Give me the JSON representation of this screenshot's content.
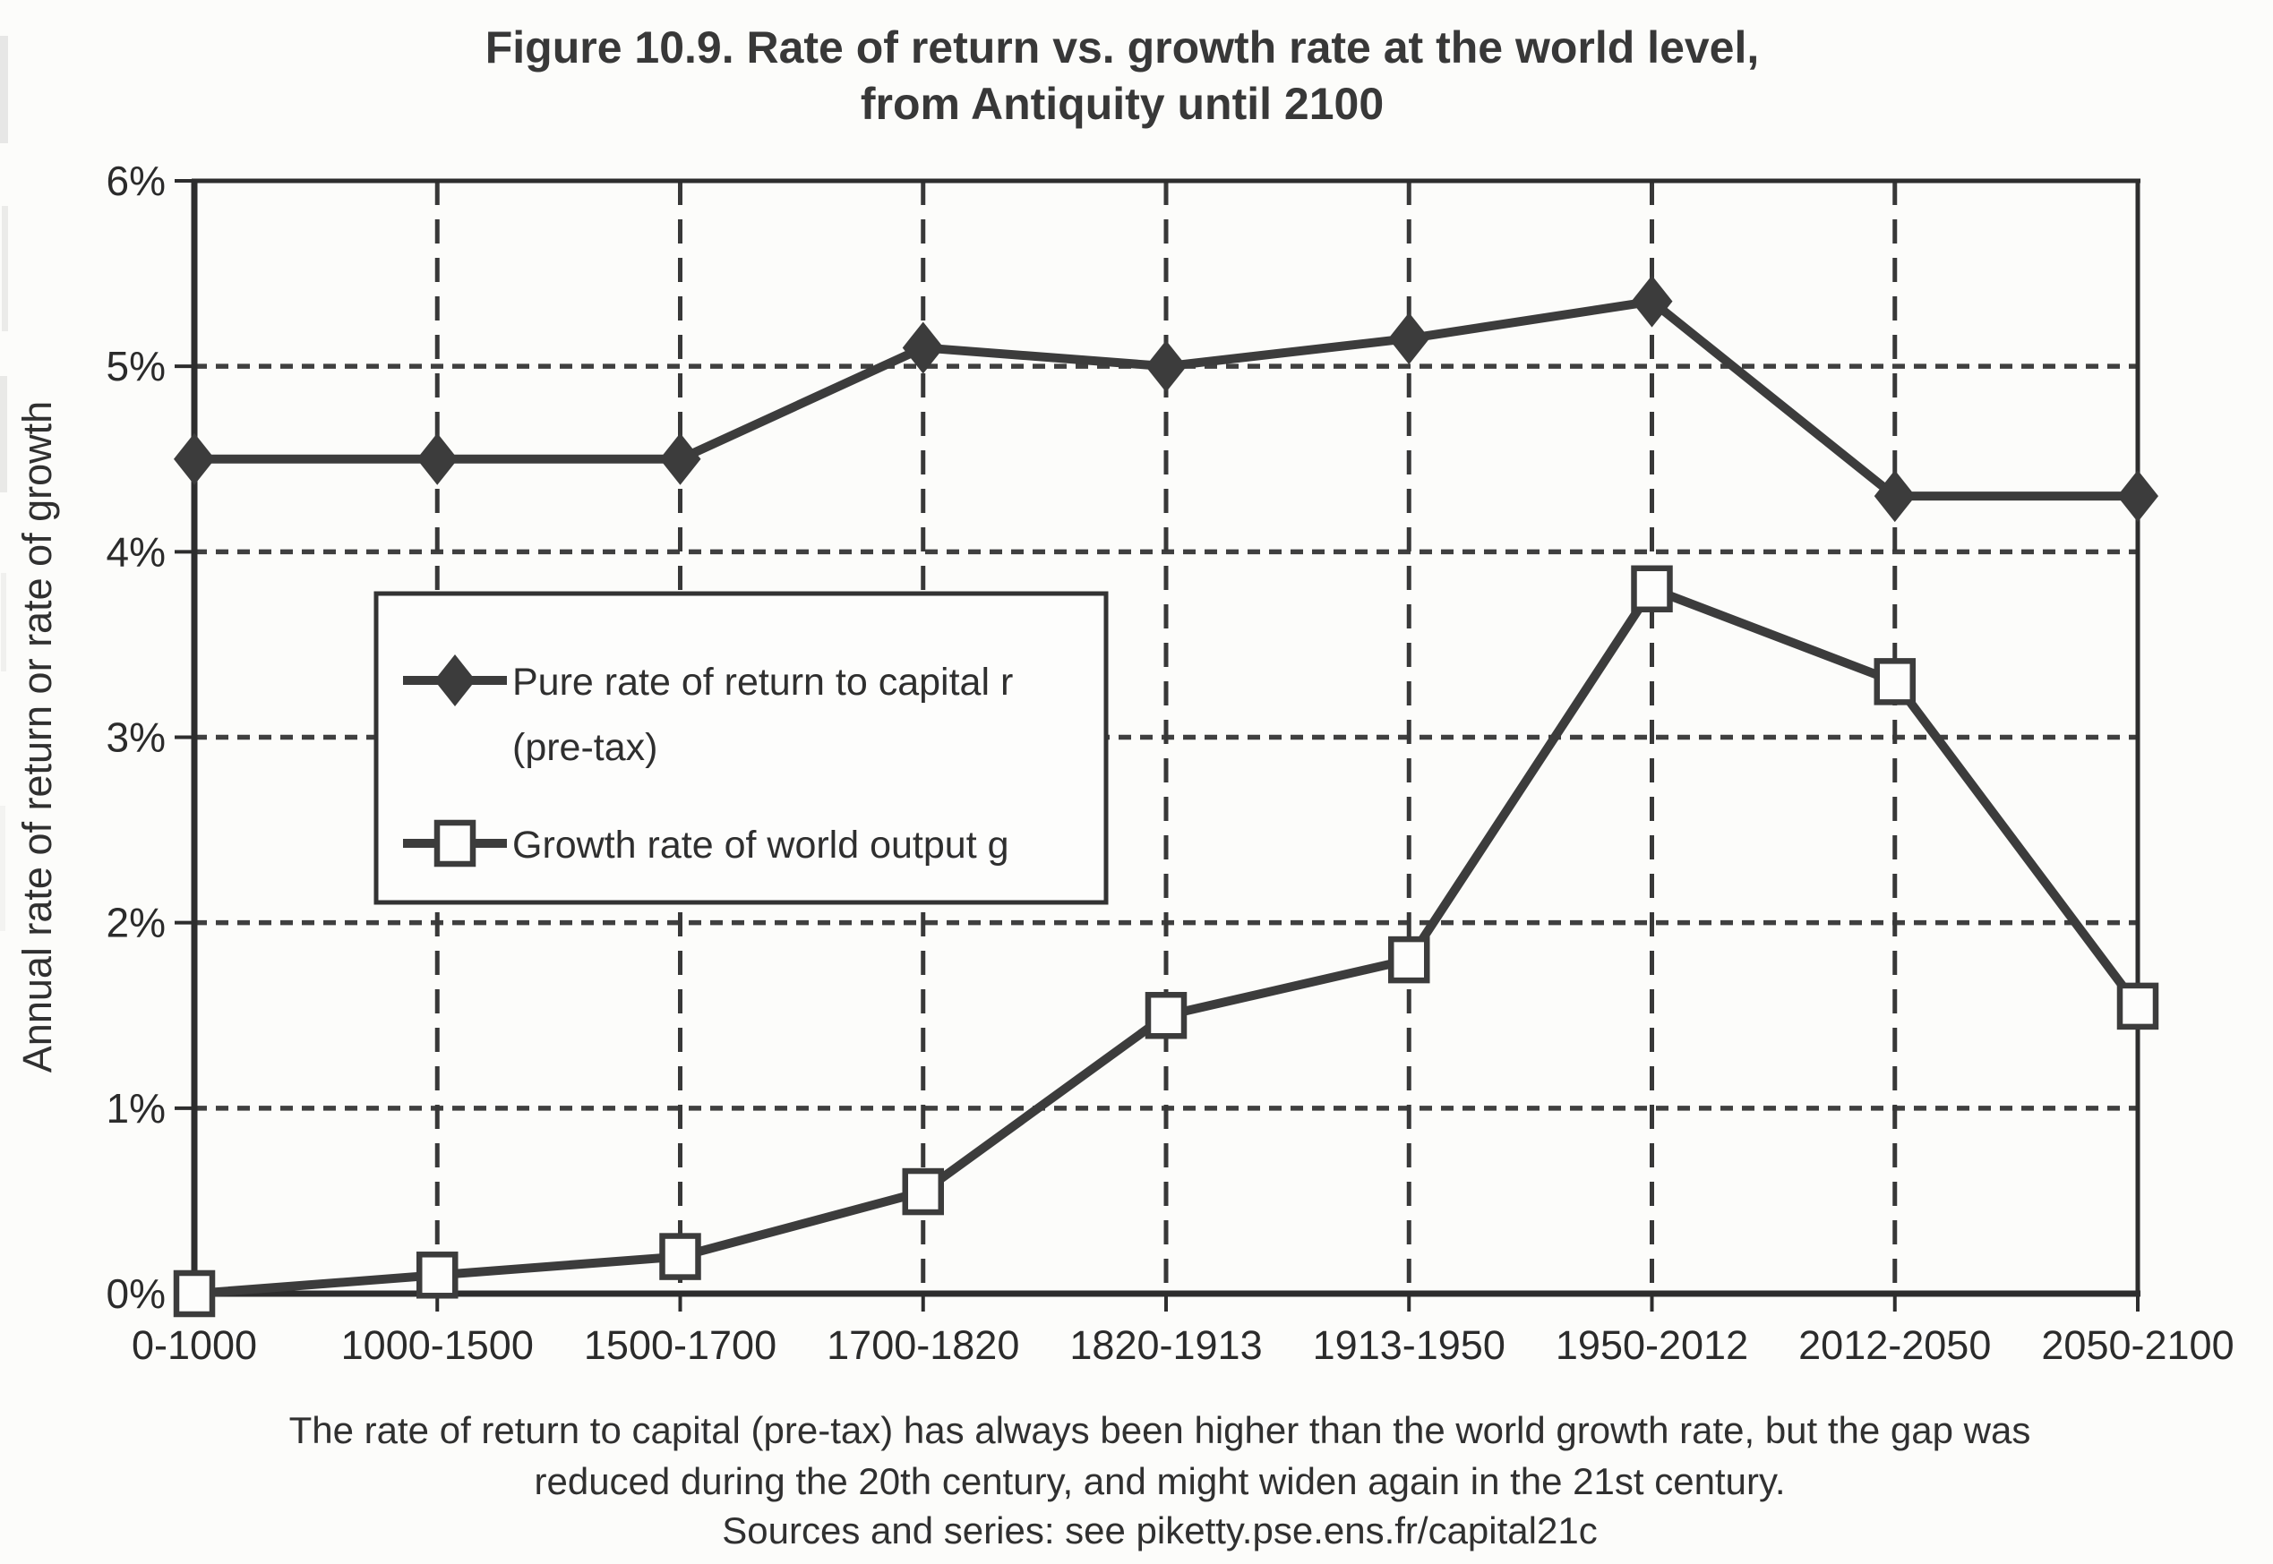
{
  "title": {
    "line1": "Figure 10.9. Rate of return vs. growth rate at the world level,",
    "line2": "from Antiquity until 2100"
  },
  "caption": {
    "line1": "The rate of return to capital (pre-tax) has always been higher than the world growth rate, but the gap was",
    "line2": "reduced during the 20th century, and might widen again in the 21st century.",
    "line3": "Sources and series: see piketty.pse.ens.fr/capital21c"
  },
  "chart_data": {
    "type": "line",
    "title": "Figure 10.9. Rate of return vs. growth rate at the world level, from Antiquity until 2100",
    "xlabel": "",
    "ylabel": "Annual rate of return or rate of growth",
    "categories": [
      "0-1000",
      "1000-1500",
      "1500-1700",
      "1700-1820",
      "1820-1913",
      "1913-1950",
      "1950-2012",
      "2012-2050",
      "2050-2100"
    ],
    "series": [
      {
        "id": "return",
        "name": "Pure rate of return to capital r (pre-tax)",
        "label_lines": [
          "Pure rate of return to capital r",
          "(pre-tax)"
        ],
        "marker": "diamond",
        "values": [
          4.5,
          4.5,
          4.5,
          5.1,
          5.0,
          5.15,
          5.35,
          4.3,
          4.3
        ]
      },
      {
        "id": "growth",
        "name": "Growth rate of world output g",
        "label_lines": [
          "Growth rate of world output g"
        ],
        "marker": "square",
        "values": [
          0.0,
          0.1,
          0.2,
          0.55,
          1.5,
          1.8,
          3.8,
          3.3,
          1.55
        ]
      }
    ],
    "ylim": [
      0,
      6
    ],
    "ytick_values": [
      0,
      1,
      2,
      3,
      4,
      5,
      6
    ],
    "ytick_labels": [
      "0%",
      "1%",
      "2%",
      "3%",
      "4%",
      "5%",
      "6%"
    ],
    "grid": {
      "horizontal": "dashed",
      "vertical": "dashed"
    },
    "legend_position": "inside-upper-left",
    "ink_color": "#3c3c3c",
    "paper_color": "#fcfcfa"
  }
}
